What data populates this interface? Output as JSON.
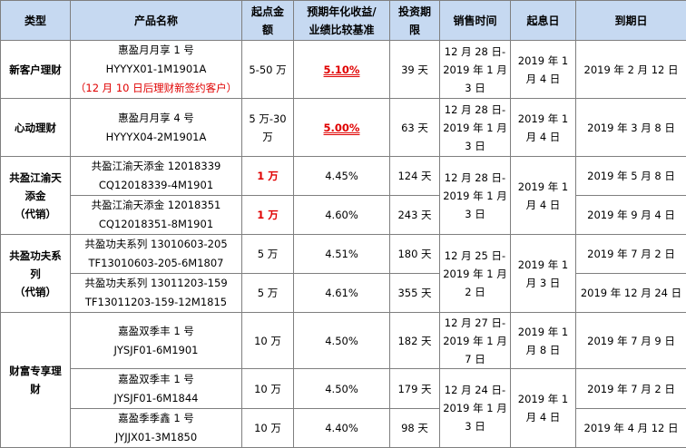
{
  "headers": {
    "type": "类型",
    "name": "产品名称",
    "min_line1": "起点金",
    "min_line2": "额",
    "rate_line1": "预期年化收益/",
    "rate_line2": "业绩比较基准",
    "term_line1": "投资期",
    "term_line2": "限",
    "sale": "销售时间",
    "start": "起息日",
    "end": "到期日"
  },
  "rows": [
    {
      "category": "新客户理财",
      "name_line1": "惠盈月月享 1 号",
      "name_line2": "HYYYX01-1M1901A",
      "note": "（12 月 10 日后理财新签约客户）",
      "amount": "5-50 万",
      "rate": "5.10%",
      "term": "39 天",
      "sale_line1": "12 月 28 日-",
      "sale_line2": "2019 年 1 月",
      "sale_line3": "3 日",
      "start_line1": "2019 年 1",
      "start_line2": "月 4 日",
      "end": "2019 年 2 月 12 日"
    },
    {
      "category": "心动理财",
      "name_line1": "惠盈月月享 4 号",
      "name_line2": "HYYYX04-2M1901A",
      "amount_line1": "5 万-30",
      "amount_line2": "万",
      "rate": "5.00%",
      "term": "63 天",
      "sale_line1": "12 月 28 日-",
      "sale_line2": "2019 年 1 月",
      "sale_line3": "3 日",
      "start_line1": "2019 年 1",
      "start_line2": "月 4 日",
      "end": "2019 年 3 月 8 日"
    },
    {
      "category_line1": "共盈江渝天",
      "category_line2": "添金",
      "category_line3": "（代销）",
      "name_line1": "共盈江渝天添金 12018339",
      "name_line2": "CQ12018339-4M1901",
      "amount": "1 万",
      "rate": "4.45%",
      "term": "124 天",
      "sale_line1": "12 月 28 日-",
      "sale_line2": "2019 年 1 月",
      "sale_line3": "3 日",
      "start_line1": "2019 年 1",
      "start_line2": "月 4 日",
      "end": "2019 年 5 月 8 日"
    },
    {
      "name_line1": "共盈江渝天添金 12018351",
      "name_line2": "CQ12018351-8M1901",
      "amount": "1 万",
      "rate": "4.60%",
      "term": "243 天",
      "end": "2019 年 9 月 4 日"
    },
    {
      "category_line1": "共盈功夫系",
      "category_line2": "列",
      "category_line3": "（代销）",
      "name_line1": "共盈功夫系列 13010603-205",
      "name_line2": "TF13010603-205-6M1807",
      "amount": "5 万",
      "rate": "4.51%",
      "term": "180 天",
      "sale_line1": "12 月 25 日-",
      "sale_line2": "2019 年 1 月",
      "sale_line3": "2 日",
      "start_line1": "2019 年 1",
      "start_line2": "月 3 日",
      "end": "2019 年 7 月 2 日"
    },
    {
      "name_line1": "共盈功夫系列 13011203-159",
      "name_line2": "TF13011203-159-12M1815",
      "amount": "5 万",
      "rate": "4.61%",
      "term": "355 天",
      "end": "2019 年 12 月 24 日"
    },
    {
      "category_line1": "财富专享理",
      "category_line2": "财",
      "name_line1": "嘉盈双季丰 1 号",
      "name_line2": "JYSJF01-6M1901",
      "amount": "10 万",
      "rate": "4.50%",
      "term": "182 天",
      "sale_line1": "12 月 27 日-",
      "sale_line2": "2019 年 1 月",
      "sale_line3": "7 日",
      "start_line1": "2019 年 1",
      "start_line2": "月 8 日",
      "end": "2019 年 7 月 9 日"
    },
    {
      "name_line1": "嘉盈双季丰 1 号",
      "name_line2": "JYSJF01-6M1844",
      "amount": "10 万",
      "rate": "4.50%",
      "term": "179 天",
      "sale_line1": "12 月 24 日-",
      "sale_line2": "2019 年 1 月",
      "sale_line3": "3 日",
      "start_line1": "2019 年 1",
      "start_line2": "月 4 日",
      "end": "2019 年 7 月 2 日"
    },
    {
      "name_line1": "嘉盈季季鑫 1 号",
      "name_line2": "JYJJX01-3M1850",
      "amount": "10 万",
      "rate": "4.40%",
      "term": "98 天",
      "end": "2019 年 4 月 12 日"
    }
  ]
}
